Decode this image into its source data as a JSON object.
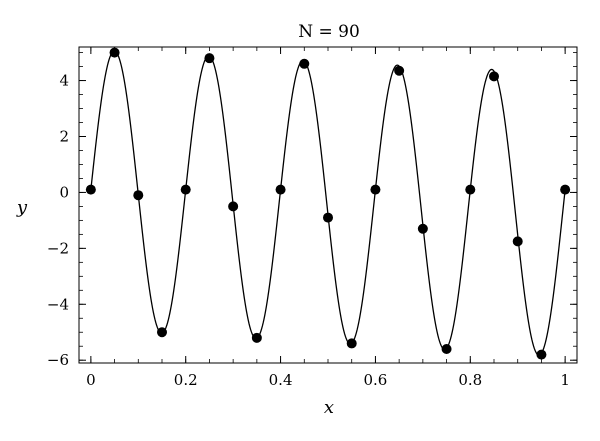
{
  "chart_data": {
    "type": "line",
    "title": "N = 90",
    "xlabel": "x",
    "ylabel": "y",
    "xlim": [
      -0.025,
      1.025
    ],
    "ylim": [
      -6.1,
      5.2
    ],
    "grid": false,
    "x_ticks": [
      0,
      0.2,
      0.4,
      0.6,
      0.8,
      1
    ],
    "x_tick_labels": [
      "0",
      "0.2",
      "0.4",
      "0.6",
      "0.8",
      "1"
    ],
    "y_ticks": [
      -6,
      -4,
      -2,
      0,
      2,
      4
    ],
    "y_tick_labels": [
      "−6",
      "−4",
      "−2",
      "0",
      "2",
      "4"
    ],
    "series": [
      {
        "kind": "curve",
        "function": "5*sin(10*pi*x) - 0.9*x*(1 - cos(10*pi*x)) + 0.1",
        "color": "#000000"
      },
      {
        "kind": "markers",
        "color": "#000000",
        "x": [
          0,
          0.05,
          0.1,
          0.15,
          0.2,
          0.25,
          0.3,
          0.35,
          0.4,
          0.45,
          0.5,
          0.55,
          0.6,
          0.65,
          0.7,
          0.75,
          0.8,
          0.85,
          0.9,
          0.95,
          1
        ],
        "y": [
          0.1,
          5.0,
          -0.1,
          -5.0,
          0.1,
          4.8,
          -0.5,
          -5.2,
          0.1,
          4.6,
          -0.9,
          -5.4,
          0.1,
          4.35,
          -1.3,
          -5.6,
          0.1,
          4.15,
          -1.75,
          -5.8,
          0.1
        ]
      }
    ]
  }
}
